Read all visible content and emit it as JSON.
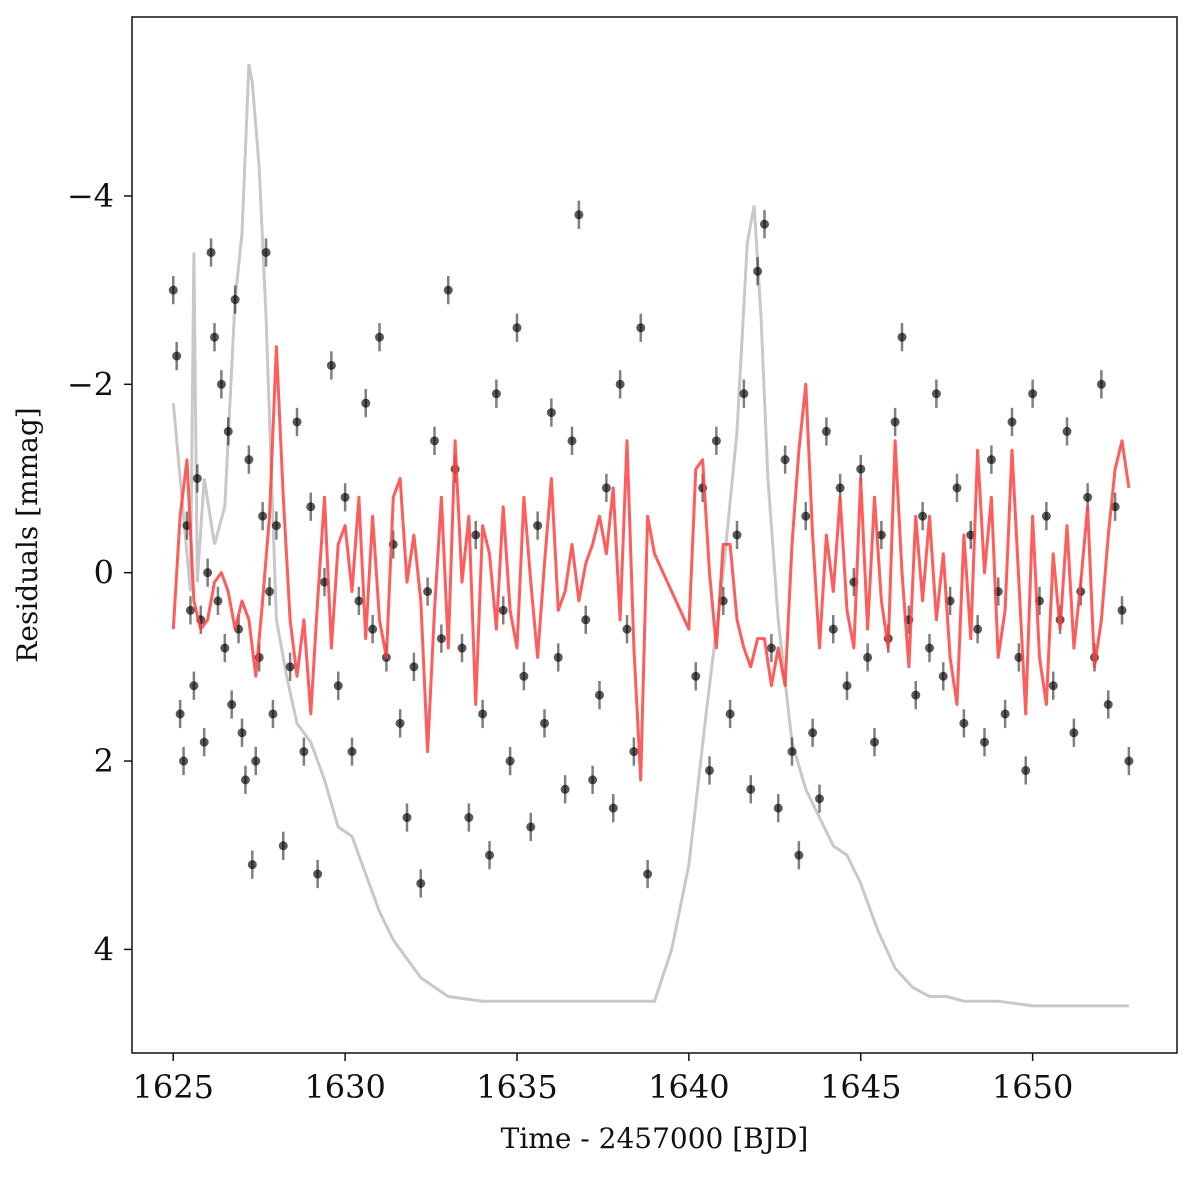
{
  "chart_data": {
    "type": "scatter",
    "title": "",
    "xlabel": "Time - 2457000 [BJD]",
    "ylabel": "Residuals [mmag]",
    "xlim": [
      1623.8,
      1654.2
    ],
    "ylim": [
      5.1,
      -5.9
    ],
    "y_inverted": true,
    "grid": false,
    "legend": "none",
    "x_ticks": [
      1625,
      1630,
      1635,
      1640,
      1645,
      1650
    ],
    "x_tick_labels": [
      "1625",
      "1630",
      "1635",
      "1640",
      "1645",
      "1650"
    ],
    "y_ticks": [
      -4,
      -2,
      0,
      2,
      4
    ],
    "y_tick_labels": [
      "−4",
      "−2",
      "0",
      "2",
      "4"
    ],
    "colors": {
      "points": "#000000",
      "model": "#ff4040",
      "background": "#c8c8c8"
    },
    "series": [
      {
        "type": "scatter_errorbar",
        "x": [
          1625.0,
          1625.1,
          1625.2,
          1625.3,
          1625.4,
          1625.5,
          1625.6,
          1625.7,
          1625.8,
          1625.9,
          1626.0,
          1626.1,
          1626.2,
          1626.3,
          1626.4,
          1626.5,
          1626.6,
          1626.7,
          1626.8,
          1626.9,
          1627.0,
          1627.1,
          1627.2,
          1627.3,
          1627.4,
          1627.5,
          1627.6,
          1627.7,
          1627.8,
          1627.9,
          1628.0,
          1628.2,
          1628.4,
          1628.6,
          1628.8,
          1629.0,
          1629.2,
          1629.4,
          1629.6,
          1629.8,
          1630.0,
          1630.2,
          1630.4,
          1630.6,
          1630.8,
          1631.0,
          1631.2,
          1631.4,
          1631.6,
          1631.8,
          1632.0,
          1632.2,
          1632.4,
          1632.6,
          1632.8,
          1633.0,
          1633.2,
          1633.4,
          1633.6,
          1633.8,
          1634.0,
          1634.2,
          1634.4,
          1634.6,
          1634.8,
          1635.0,
          1635.2,
          1635.4,
          1635.6,
          1635.8,
          1636.0,
          1636.2,
          1636.4,
          1636.6,
          1636.8,
          1637.0,
          1637.2,
          1637.4,
          1637.6,
          1637.8,
          1638.0,
          1638.2,
          1638.4,
          1638.6,
          1638.8,
          1640.2,
          1640.4,
          1640.6,
          1640.8,
          1641.0,
          1641.2,
          1641.4,
          1641.6,
          1641.8,
          1642.0,
          1642.2,
          1642.4,
          1642.6,
          1642.8,
          1643.0,
          1643.2,
          1643.4,
          1643.6,
          1643.8,
          1644.0,
          1644.2,
          1644.4,
          1644.6,
          1644.8,
          1645.0,
          1645.2,
          1645.4,
          1645.6,
          1645.8,
          1646.0,
          1646.2,
          1646.4,
          1646.6,
          1646.8,
          1647.0,
          1647.2,
          1647.4,
          1647.6,
          1647.8,
          1648.0,
          1648.2,
          1648.4,
          1648.6,
          1648.8,
          1649.0,
          1649.2,
          1649.4,
          1649.6,
          1649.8,
          1650.0,
          1650.2,
          1650.4,
          1650.6,
          1650.8,
          1651.0,
          1651.2,
          1651.4,
          1651.6,
          1651.8,
          1652.0,
          1652.2,
          1652.4,
          1652.6,
          1652.8
        ],
        "y": [
          -3.0,
          -2.3,
          1.5,
          2.0,
          -0.5,
          0.4,
          1.2,
          -1.0,
          0.5,
          1.8,
          0.0,
          -3.4,
          -2.5,
          0.3,
          -2.0,
          0.8,
          -1.5,
          1.4,
          -2.9,
          0.6,
          1.7,
          2.2,
          -1.2,
          3.1,
          2.0,
          0.9,
          -0.6,
          -3.4,
          0.2,
          1.5,
          -0.5,
          2.9,
          1.0,
          -1.6,
          1.9,
          -0.7,
          3.2,
          0.1,
          -2.2,
          1.2,
          -0.8,
          1.9,
          0.3,
          -1.8,
          0.6,
          -2.5,
          0.9,
          -0.3,
          1.6,
          2.6,
          1.0,
          3.3,
          0.2,
          -1.4,
          0.7,
          -3.0,
          -1.1,
          0.8,
          2.6,
          -0.4,
          1.5,
          3.0,
          -1.9,
          0.4,
          2.0,
          -2.6,
          1.1,
          2.7,
          -0.5,
          1.6,
          -1.7,
          0.9,
          2.3,
          -1.4,
          -3.8,
          0.5,
          2.2,
          1.3,
          -0.9,
          2.5,
          -2.0,
          0.6,
          1.9,
          -2.6,
          3.2,
          1.1,
          -0.9,
          2.1,
          -1.4,
          0.3,
          1.5,
          -0.4,
          -1.9,
          2.3,
          -3.2,
          -3.7,
          0.8,
          2.5,
          -1.2,
          1.9,
          3.0,
          -0.6,
          1.7,
          2.4,
          -1.5,
          0.6,
          -0.9,
          1.2,
          0.1,
          -1.1,
          0.9,
          1.8,
          -0.4,
          0.7,
          -1.6,
          -2.5,
          0.5,
          1.3,
          -0.6,
          0.8,
          -1.9,
          1.1,
          0.3,
          -0.9,
          1.6,
          -0.4,
          0.6,
          1.8,
          -1.2,
          0.2,
          1.5,
          -1.6,
          0.9,
          2.1,
          -1.9,
          0.3,
          -0.6,
          1.2,
          0.5,
          -1.5,
          1.7,
          0.2,
          -0.8,
          0.9,
          -2.0,
          1.4,
          -0.7,
          0.4,
          2.0
        ],
        "yerr": 0.15
      },
      {
        "type": "line",
        "x": [
          1625.0,
          1625.2,
          1625.4,
          1625.6,
          1625.8,
          1626.0,
          1626.2,
          1626.4,
          1626.6,
          1626.8,
          1627.0,
          1627.2,
          1627.4,
          1627.6,
          1627.8,
          1628.0,
          1628.2,
          1628.4,
          1628.6,
          1628.8,
          1629.0,
          1629.2,
          1629.4,
          1629.6,
          1629.8,
          1630.0,
          1630.2,
          1630.4,
          1630.6,
          1630.8,
          1631.0,
          1631.2,
          1631.4,
          1631.6,
          1631.8,
          1632.0,
          1632.2,
          1632.4,
          1632.6,
          1632.8,
          1633.0,
          1633.2,
          1633.4,
          1633.6,
          1633.8,
          1634.0,
          1634.2,
          1634.4,
          1634.6,
          1634.8,
          1635.0,
          1635.2,
          1635.4,
          1635.6,
          1635.8,
          1636.0,
          1636.2,
          1636.4,
          1636.6,
          1636.8,
          1637.0,
          1637.2,
          1637.4,
          1637.6,
          1637.8,
          1638.0,
          1638.2,
          1638.4,
          1638.6,
          1638.8,
          1639.0,
          1640.0,
          1640.2,
          1640.4,
          1640.6,
          1640.8,
          1641.0,
          1641.2,
          1641.4,
          1641.6,
          1641.8,
          1642.0,
          1642.2,
          1642.4,
          1642.6,
          1642.8,
          1643.0,
          1643.2,
          1643.4,
          1643.6,
          1643.8,
          1644.0,
          1644.2,
          1644.4,
          1644.6,
          1644.8,
          1645.0,
          1645.2,
          1645.4,
          1645.6,
          1645.8,
          1646.0,
          1646.2,
          1646.4,
          1646.6,
          1646.8,
          1647.0,
          1647.2,
          1647.4,
          1647.6,
          1647.8,
          1648.0,
          1648.2,
          1648.4,
          1648.6,
          1648.8,
          1649.0,
          1649.2,
          1649.4,
          1649.6,
          1649.8,
          1650.0,
          1650.2,
          1650.4,
          1650.6,
          1650.8,
          1651.0,
          1651.2,
          1651.4,
          1651.6,
          1651.8,
          1652.0,
          1652.2,
          1652.4,
          1652.6,
          1652.8
        ],
        "y": [
          0.6,
          -0.6,
          -1.2,
          0.3,
          0.6,
          0.5,
          0.1,
          0.0,
          0.2,
          0.6,
          0.3,
          0.5,
          1.1,
          0.3,
          -0.6,
          -2.4,
          -0.8,
          0.5,
          1.1,
          0.5,
          1.5,
          0.3,
          -0.8,
          0.8,
          -0.3,
          -0.5,
          0.2,
          -0.8,
          0.7,
          -0.6,
          0.5,
          0.9,
          -0.8,
          -1.0,
          0.1,
          -0.4,
          0.3,
          1.9,
          0.4,
          -0.8,
          0.8,
          -1.4,
          0.1,
          -0.6,
          1.4,
          -0.5,
          -0.2,
          0.6,
          -0.7,
          0.4,
          0.8,
          -0.8,
          0.1,
          0.9,
          -0.1,
          -1.0,
          0.4,
          0.2,
          -0.3,
          0.3,
          -0.1,
          -0.3,
          -0.6,
          -0.2,
          -0.9,
          0.5,
          -1.4,
          0.8,
          2.2,
          -0.6,
          -0.2,
          0.6,
          -1.1,
          -1.2,
          0.0,
          0.8,
          -0.3,
          -0.3,
          0.5,
          0.8,
          1.0,
          0.7,
          0.7,
          1.2,
          0.8,
          1.2,
          -0.3,
          -1.3,
          -2.0,
          -0.4,
          0.8,
          -0.4,
          0.2,
          -0.8,
          0.4,
          0.8,
          -1.0,
          0.6,
          -0.8,
          0.3,
          0.8,
          -1.4,
          0.0,
          1.0,
          -0.6,
          0.3,
          -0.6,
          0.5,
          -0.2,
          0.9,
          1.4,
          -0.4,
          0.7,
          -1.3,
          0.0,
          -0.8,
          0.9,
          0.4,
          -1.3,
          0.1,
          1.5,
          -0.6,
          0.9,
          1.4,
          -0.2,
          0.6,
          -0.5,
          0.8,
          0.1,
          -0.7,
          1.0,
          0.5,
          -0.4,
          -1.1,
          -1.4,
          -0.9
        ],
        "color": "#ff4040"
      },
      {
        "type": "line",
        "x": [
          1625.0,
          1625.3,
          1625.5,
          1625.6,
          1625.7,
          1625.9,
          1626.2,
          1626.5,
          1626.8,
          1627.0,
          1627.2,
          1627.3,
          1627.5,
          1627.7,
          1628.0,
          1628.3,
          1628.6,
          1629.0,
          1629.4,
          1629.8,
          1630.2,
          1630.6,
          1631.0,
          1631.4,
          1631.8,
          1632.2,
          1632.6,
          1633.0,
          1634.0,
          1635.0,
          1636.0,
          1637.0,
          1638.0,
          1639.0,
          1639.5,
          1640.0,
          1640.5,
          1641.0,
          1641.4,
          1641.7,
          1641.9,
          1642.1,
          1642.3,
          1642.6,
          1643.0,
          1643.4,
          1643.8,
          1644.2,
          1644.6,
          1645.0,
          1645.5,
          1646.0,
          1646.5,
          1647.0,
          1647.5,
          1648.0,
          1649.0,
          1650.0,
          1651.0,
          1652.0,
          1652.8
        ],
        "y": [
          -1.8,
          -0.6,
          0.2,
          -3.4,
          0.1,
          -1.0,
          -0.3,
          -0.7,
          -2.9,
          -3.6,
          -5.4,
          -5.2,
          -4.3,
          -2.7,
          0.5,
          1.1,
          1.6,
          1.8,
          2.2,
          2.7,
          2.8,
          3.2,
          3.6,
          3.9,
          4.1,
          4.3,
          4.4,
          4.5,
          4.55,
          4.55,
          4.55,
          4.55,
          4.55,
          4.55,
          4.0,
          3.1,
          1.5,
          0.0,
          -1.5,
          -3.5,
          -3.9,
          -2.7,
          -1.0,
          0.5,
          1.8,
          2.3,
          2.6,
          2.9,
          3.0,
          3.3,
          3.8,
          4.2,
          4.4,
          4.5,
          4.5,
          4.55,
          4.55,
          4.6,
          4.6,
          4.6,
          4.6
        ],
        "color": "#c8c8c8"
      }
    ]
  }
}
